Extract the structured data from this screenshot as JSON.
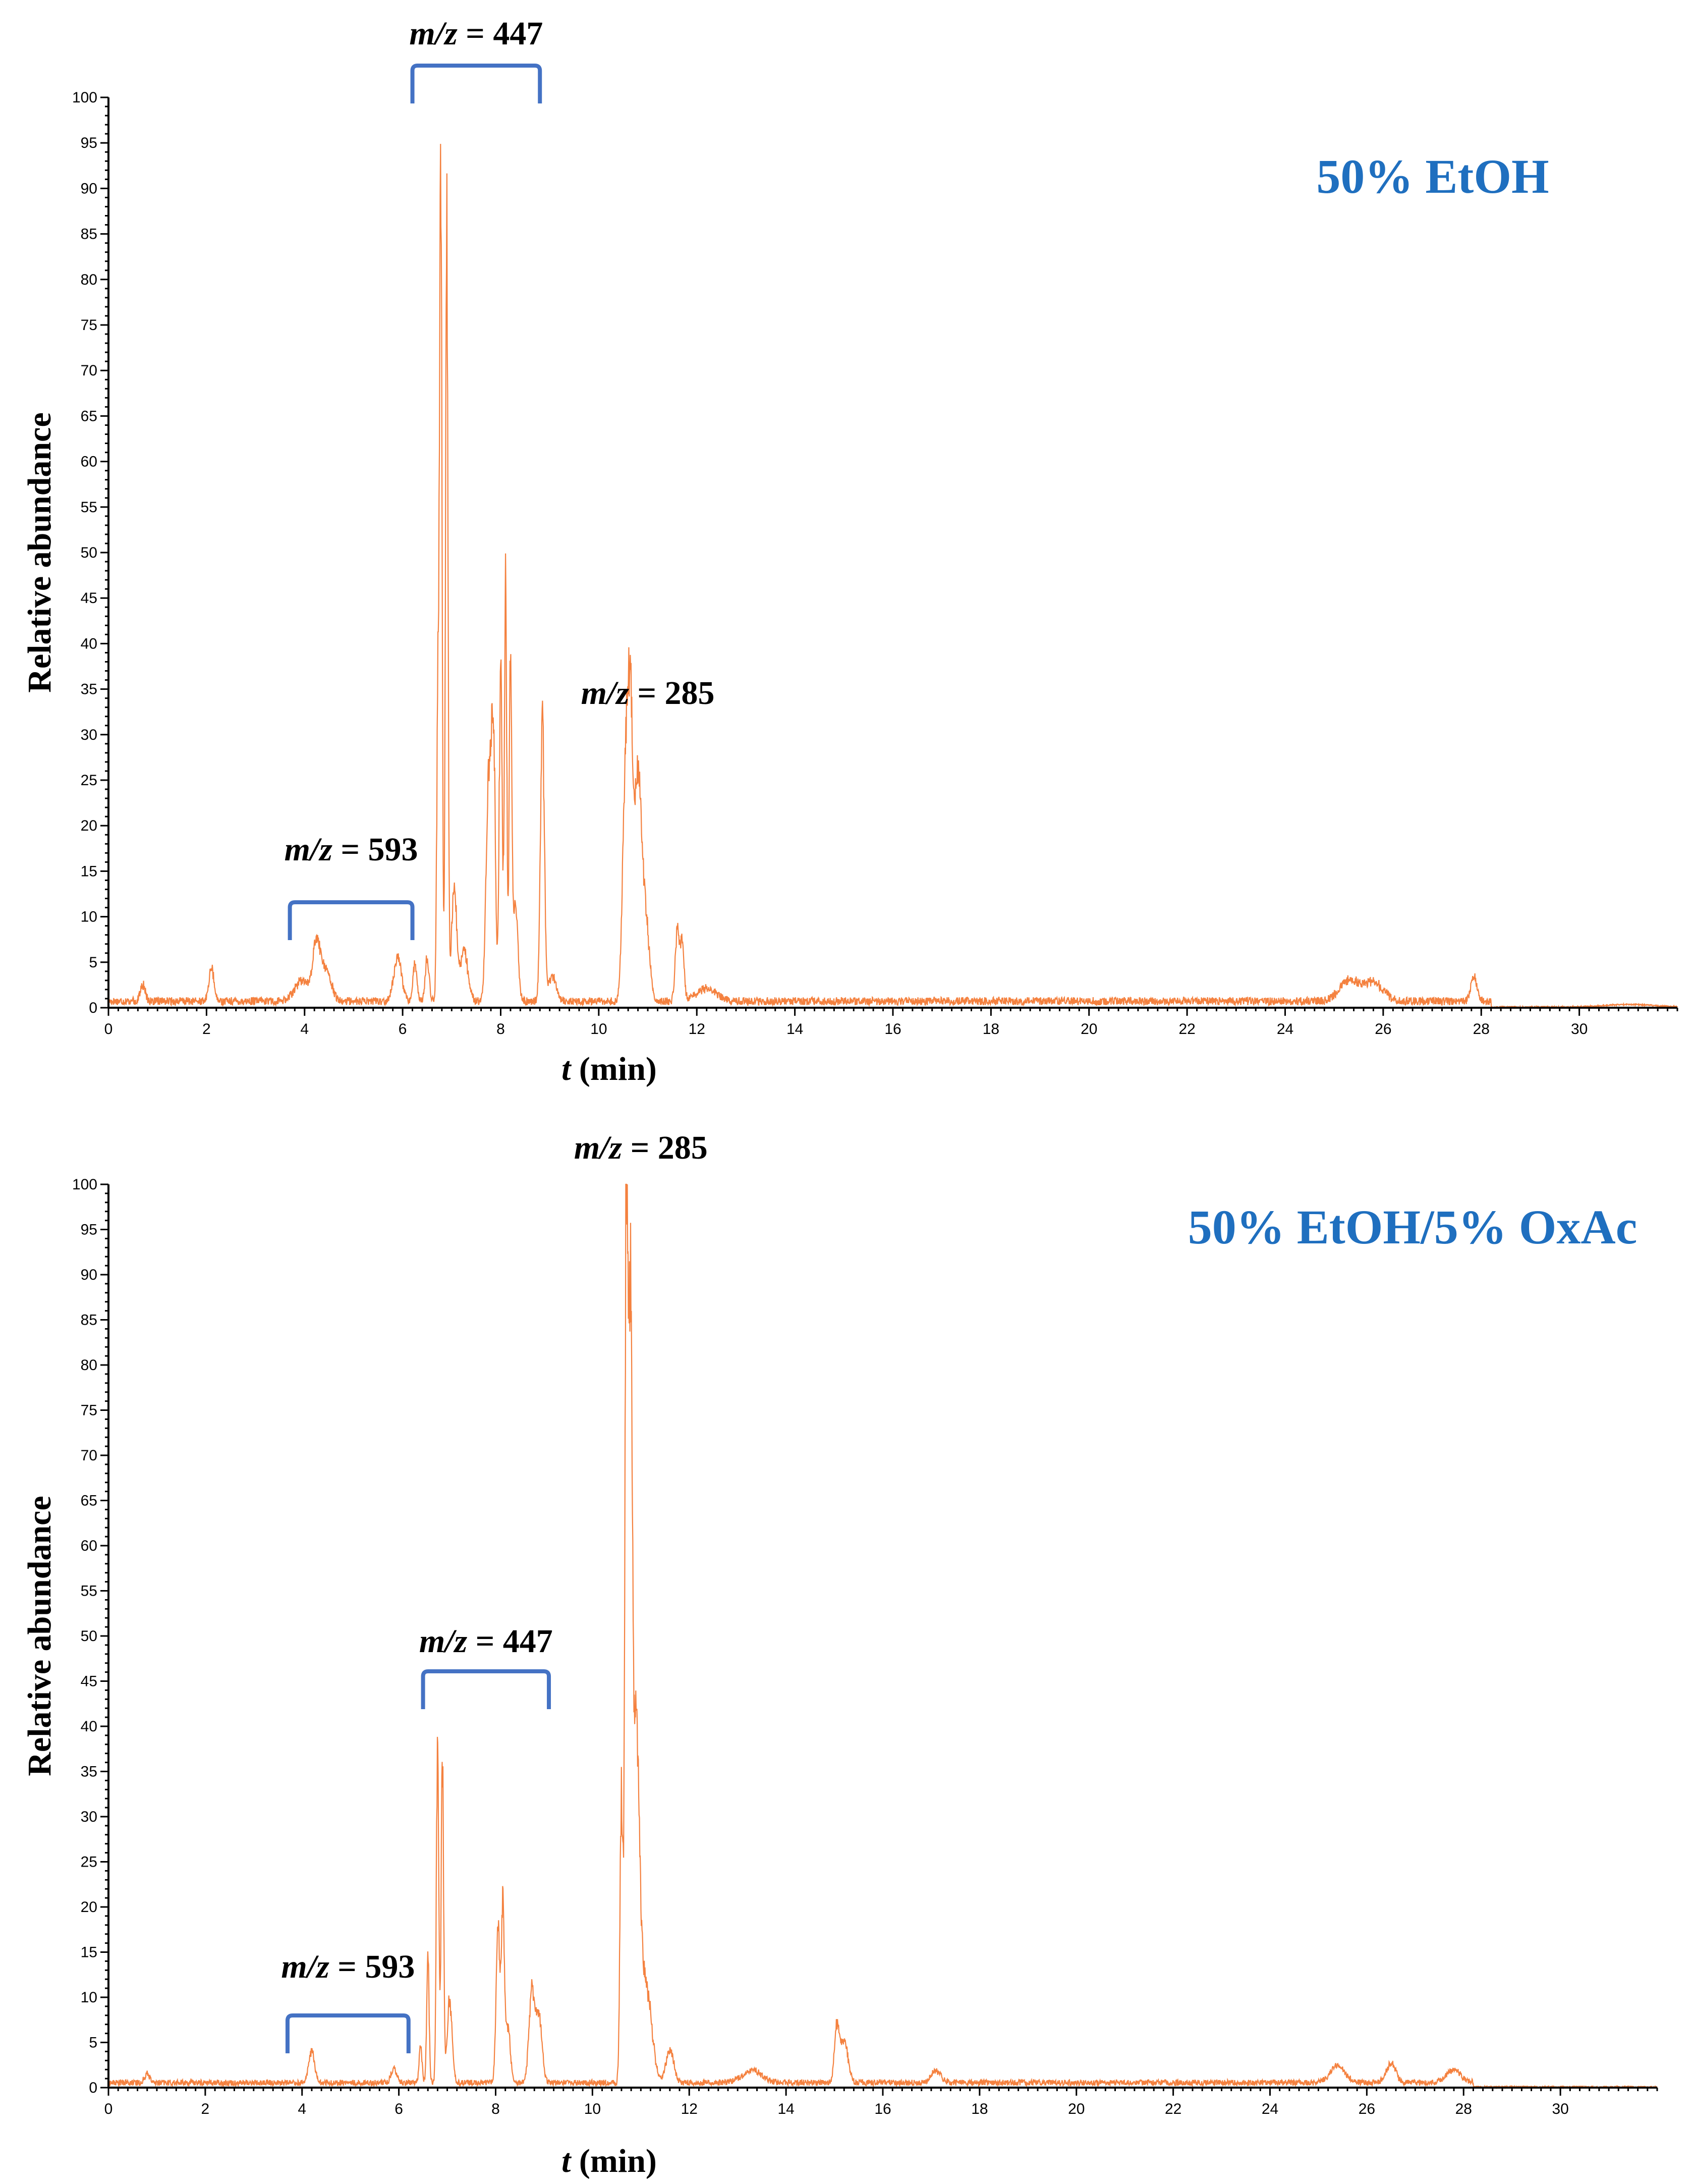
{
  "colors": {
    "trace": "#f4813f",
    "bracket": "#4472c4",
    "condition_label": "#1f6fbf"
  },
  "chart_data": [
    {
      "type": "line",
      "condition_label": "50% EtOH",
      "xlabel": {
        "italic": "t",
        "rest": " (min)"
      },
      "ylabel": "Relative abundance",
      "xlim": [
        0,
        32
      ],
      "ylim": [
        0,
        100
      ],
      "x_ticks": [
        0,
        2,
        4,
        6,
        8,
        10,
        12,
        14,
        16,
        18,
        20,
        22,
        24,
        26,
        28,
        30
      ],
      "y_ticks": [
        0,
        5,
        10,
        15,
        20,
        25,
        30,
        35,
        40,
        45,
        50,
        55,
        60,
        65,
        70,
        75,
        80,
        85,
        90,
        95,
        100
      ],
      "annotations": [
        {
          "mz_label": "m/z",
          "value": " = 447",
          "bracket_x": [
            6.2,
            8.8
          ]
        },
        {
          "mz_label": "m/z",
          "value": " = 285",
          "at_x": 11.0,
          "at_y": 34
        },
        {
          "mz_label": "m/z",
          "value": " = 593",
          "bracket_x": [
            3.7,
            6.2
          ]
        }
      ],
      "baseline": 0.8,
      "noise_end": 28.2,
      "peaks": [
        {
          "t": 0.7,
          "h": 2.0,
          "w": 0.05
        },
        {
          "t": 2.1,
          "h": 4.0,
          "w": 0.05
        },
        {
          "t": 3.95,
          "h": 2.5,
          "w": 0.15
        },
        {
          "t": 4.25,
          "h": 6.8,
          "w": 0.08
        },
        {
          "t": 4.45,
          "h": 3.5,
          "w": 0.1
        },
        {
          "t": 5.9,
          "h": 5.3,
          "w": 0.08
        },
        {
          "t": 6.25,
          "h": 4.5,
          "w": 0.04
        },
        {
          "t": 6.5,
          "h": 5.0,
          "w": 0.04
        },
        {
          "t": 6.72,
          "h": 35,
          "w": 0.025
        },
        {
          "t": 6.78,
          "h": 100,
          "w": 0.025
        },
        {
          "t": 6.9,
          "h": 92,
          "w": 0.025
        },
        {
          "t": 7.05,
          "h": 14,
          "w": 0.05
        },
        {
          "t": 7.25,
          "h": 6,
          "w": 0.08
        },
        {
          "t": 7.75,
          "h": 26,
          "w": 0.05
        },
        {
          "t": 7.85,
          "h": 31.5,
          "w": 0.04
        },
        {
          "t": 8.0,
          "h": 40,
          "w": 0.03
        },
        {
          "t": 8.1,
          "h": 49,
          "w": 0.025
        },
        {
          "t": 8.2,
          "h": 43,
          "w": 0.025
        },
        {
          "t": 8.3,
          "h": 12,
          "w": 0.05
        },
        {
          "t": 8.85,
          "h": 33.5,
          "w": 0.04
        },
        {
          "t": 9.05,
          "h": 3,
          "w": 0.08
        },
        {
          "t": 10.55,
          "h": 28,
          "w": 0.06
        },
        {
          "t": 10.65,
          "h": 30,
          "w": 0.05
        },
        {
          "t": 10.8,
          "h": 25.5,
          "w": 0.07
        },
        {
          "t": 10.95,
          "h": 10,
          "w": 0.08
        },
        {
          "t": 11.6,
          "h": 8.5,
          "w": 0.04
        },
        {
          "t": 11.7,
          "h": 7,
          "w": 0.04
        },
        {
          "t": 12.2,
          "h": 1.6,
          "w": 0.2
        },
        {
          "t": 25.3,
          "h": 2.5,
          "w": 0.2
        },
        {
          "t": 25.8,
          "h": 2.2,
          "w": 0.2
        },
        {
          "t": 27.85,
          "h": 3.1,
          "w": 0.06
        },
        {
          "t": 31.0,
          "h": 0.3,
          "w": 0.5
        }
      ]
    },
    {
      "type": "line",
      "condition_label": "50% EtOH/5% OxAc",
      "xlabel": {
        "italic": "t",
        "rest": " (min)"
      },
      "ylabel": "Relative abundance",
      "xlim": [
        0,
        32
      ],
      "ylim": [
        0,
        100
      ],
      "x_ticks": [
        0,
        2,
        4,
        6,
        8,
        10,
        12,
        14,
        16,
        18,
        20,
        22,
        24,
        26,
        28,
        30
      ],
      "y_ticks": [
        0,
        5,
        10,
        15,
        20,
        25,
        30,
        35,
        40,
        45,
        50,
        55,
        60,
        65,
        70,
        75,
        80,
        85,
        90,
        95,
        100
      ],
      "annotations": [
        {
          "mz_label": "m/z",
          "value": " = 285",
          "at_x": 11.0,
          "at_y": 104
        },
        {
          "mz_label": "m/z",
          "value": " = 447",
          "bracket_x": [
            6.5,
            9.1
          ]
        },
        {
          "mz_label": "m/z",
          "value": " = 593",
          "bracket_x": [
            3.7,
            6.2
          ]
        }
      ],
      "baseline": 0.6,
      "noise_end": 28.2,
      "peaks": [
        {
          "t": 0.8,
          "h": 1.2,
          "w": 0.05
        },
        {
          "t": 4.2,
          "h": 3.8,
          "w": 0.06
        },
        {
          "t": 5.9,
          "h": 1.8,
          "w": 0.06
        },
        {
          "t": 6.45,
          "h": 4.5,
          "w": 0.03
        },
        {
          "t": 6.6,
          "h": 15,
          "w": 0.025
        },
        {
          "t": 6.8,
          "h": 41,
          "w": 0.025
        },
        {
          "t": 6.9,
          "h": 40,
          "w": 0.025
        },
        {
          "t": 7.05,
          "h": 10,
          "w": 0.05
        },
        {
          "t": 8.05,
          "h": 18.5,
          "w": 0.04
        },
        {
          "t": 8.15,
          "h": 21,
          "w": 0.03
        },
        {
          "t": 8.25,
          "h": 7,
          "w": 0.05
        },
        {
          "t": 8.75,
          "h": 11,
          "w": 0.06
        },
        {
          "t": 8.9,
          "h": 8,
          "w": 0.06
        },
        {
          "t": 10.6,
          "h": 35,
          "w": 0.03
        },
        {
          "t": 10.7,
          "h": 100,
          "w": 0.03
        },
        {
          "t": 10.78,
          "h": 88,
          "w": 0.04
        },
        {
          "t": 10.9,
          "h": 40,
          "w": 0.07
        },
        {
          "t": 11.1,
          "h": 12,
          "w": 0.12
        },
        {
          "t": 11.6,
          "h": 4,
          "w": 0.08
        },
        {
          "t": 13.3,
          "h": 1.5,
          "w": 0.2
        },
        {
          "t": 15.05,
          "h": 6.5,
          "w": 0.05
        },
        {
          "t": 15.2,
          "h": 5,
          "w": 0.08
        },
        {
          "t": 17.1,
          "h": 1.4,
          "w": 0.1
        },
        {
          "t": 25.4,
          "h": 2.2,
          "w": 0.15
        },
        {
          "t": 26.5,
          "h": 2.3,
          "w": 0.1
        },
        {
          "t": 27.8,
          "h": 1.6,
          "w": 0.15
        }
      ]
    }
  ]
}
